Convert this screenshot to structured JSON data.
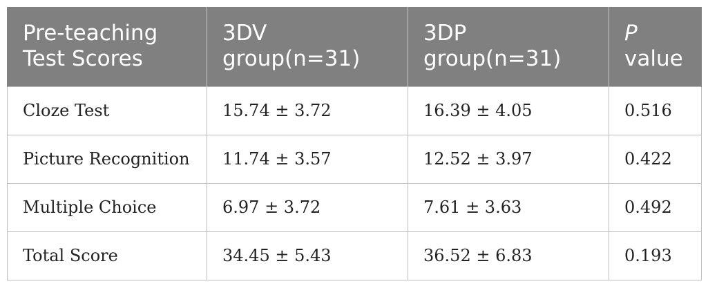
{
  "table": {
    "headers": {
      "col1": {
        "line1": "Pre-teaching",
        "line2": "Test Scores"
      },
      "col2": {
        "line1": "3DV",
        "line2": "group(n=31)"
      },
      "col3": {
        "line1": "3DP",
        "line2": "group(n=31)"
      },
      "col4": {
        "line1": "P",
        "line2": "value"
      }
    },
    "rows": [
      {
        "label": "Cloze Test",
        "dv": "15.74 ± 3.72",
        "dp": "16.39 ± 4.05",
        "p": "0.516"
      },
      {
        "label": "Picture Recognition",
        "dv": "11.74 ± 3.57",
        "dp": "12.52 ± 3.97",
        "p": "0.422"
      },
      {
        "label": "Multiple Choice",
        "dv": "6.97 ± 3.72",
        "dp": "7.61 ± 3.63",
        "p": "0.492"
      },
      {
        "label": "Total Score",
        "dv": "34.45 ± 5.43",
        "dp": "36.52 ± 6.83",
        "p": "0.193"
      }
    ]
  },
  "colors": {
    "header_bg": "#808080",
    "header_text": "#ffffff",
    "grid": "#bdbdbd"
  }
}
